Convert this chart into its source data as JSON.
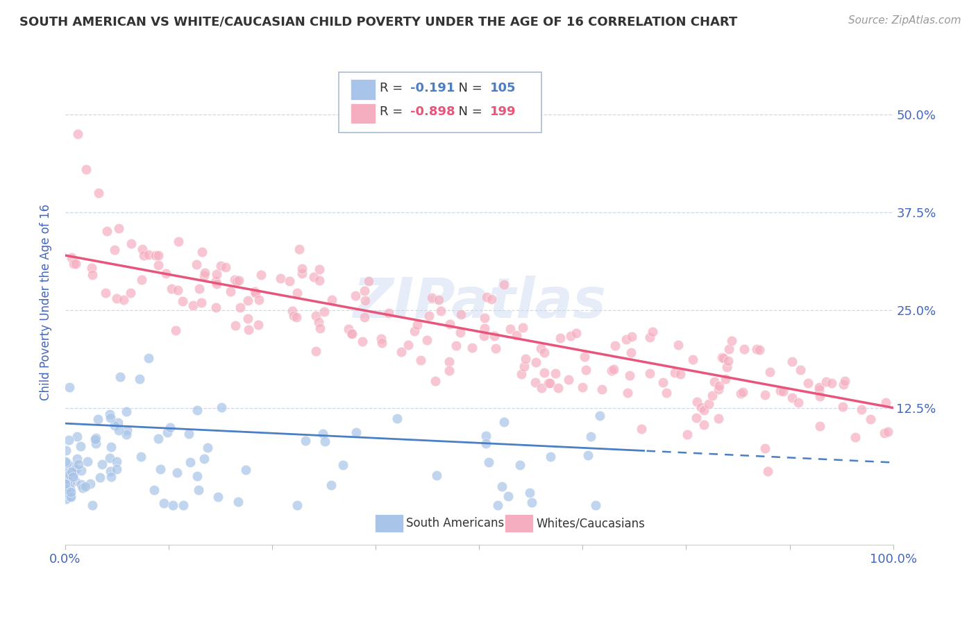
{
  "title": "SOUTH AMERICAN VS WHITE/CAUCASIAN CHILD POVERTY UNDER THE AGE OF 16 CORRELATION CHART",
  "source": "Source: ZipAtlas.com",
  "ylabel": "Child Poverty Under the Age of 16",
  "xlim": [
    0,
    100
  ],
  "ylim": [
    -5,
    57
  ],
  "ytick_labels": [
    "12.5%",
    "25.0%",
    "37.5%",
    "50.0%"
  ],
  "ytick_positions": [
    12.5,
    25.0,
    37.5,
    50.0
  ],
  "blue_color": "#a8c4e8",
  "pink_color": "#f5aec0",
  "blue_line_color": "#4a7ec5",
  "pink_line_color": "#e8547a",
  "blue_R": -0.191,
  "blue_N": 105,
  "pink_R": -0.898,
  "pink_N": 199,
  "legend_label_blue": "South Americans",
  "legend_label_pink": "Whites/Caucasians",
  "watermark": "ZIPatlas",
  "background_color": "#ffffff",
  "grid_color": "#c8d4e8",
  "tick_label_color": "#4466bb",
  "axis_label_color": "#4466bb",
  "blue_line_solid_end": 70,
  "blue_line_y_start": 10.5,
  "blue_line_y_end": 5.5,
  "pink_line_y_start": 32.0,
  "pink_line_y_end": 12.5
}
